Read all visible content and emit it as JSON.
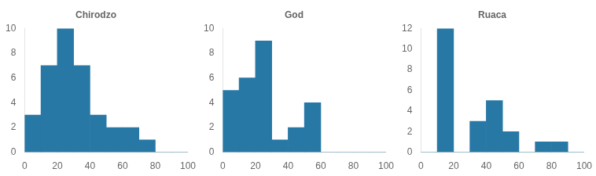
{
  "chart_data": [
    {
      "type": "histogram",
      "title": "Chirodzo",
      "bins": [
        0,
        10,
        20,
        30,
        40,
        50,
        60,
        70,
        80,
        90,
        100
      ],
      "values": [
        3,
        7,
        10,
        7,
        3,
        2,
        2,
        1,
        0,
        0
      ],
      "color": "#2878a6",
      "xlim": [
        0,
        100
      ],
      "xticks": [
        0,
        20,
        40,
        60,
        80,
        100
      ],
      "ylim": [
        0,
        10
      ],
      "yticks": [
        0,
        2,
        4,
        6,
        8,
        10
      ],
      "grid": false
    },
    {
      "type": "histogram",
      "title": "God",
      "bins": [
        0,
        10,
        20,
        30,
        40,
        50,
        60,
        70,
        80,
        90,
        100
      ],
      "values": [
        5,
        6,
        9,
        1,
        2,
        4,
        0,
        0,
        0,
        0
      ],
      "color": "#2878a6",
      "xlim": [
        0,
        100
      ],
      "xticks": [
        0,
        20,
        40,
        60,
        80,
        100
      ],
      "ylim": [
        0,
        10
      ],
      "yticks": [
        0,
        2,
        4,
        6,
        8,
        10
      ],
      "grid": false
    },
    {
      "type": "histogram",
      "title": "Ruaca",
      "bins": [
        0,
        10,
        20,
        30,
        40,
        50,
        60,
        70,
        80,
        90,
        100
      ],
      "values": [
        0,
        12,
        0,
        3,
        5,
        2,
        0,
        1,
        1,
        0
      ],
      "color": "#2878a6",
      "xlim": [
        0,
        100
      ],
      "xticks": [
        0,
        20,
        40,
        60,
        80,
        100
      ],
      "ylim": [
        0,
        12
      ],
      "yticks": [
        0,
        2,
        4,
        6,
        8,
        10,
        12
      ],
      "grid": false
    }
  ]
}
